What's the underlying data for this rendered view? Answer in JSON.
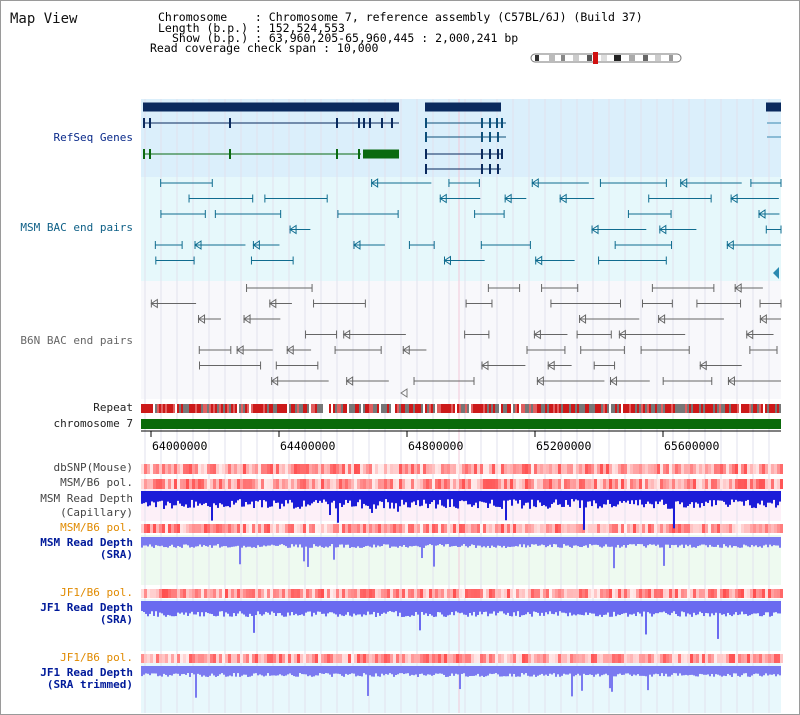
{
  "header": {
    "title": "Map View",
    "chromosome_line": "Chromosome    : Chromosome 7, reference assembly (C57BL/6J) (Build 37)",
    "length_line": "Length (b.p.) : 152,524,553",
    "show_line": "Show (b.p.) : 63,960,205-65,960,445 : 2,000,241 bp",
    "coverage_line": "Read coverage check span : 10,000"
  },
  "tracks": {
    "refseq": "RefSeq Genes",
    "msm_bac": "MSM BAC end pairs",
    "b6n_bac": "B6N BAC end pairs",
    "repeat": "Repeat",
    "chromosome": "chromosome 7",
    "dbsnp": "dbSNP(Mouse)",
    "msm_b6_pol_1": "MSM/B6 pol.",
    "msm_depth_cap_1": "MSM Read Depth",
    "msm_depth_cap_2": "(Capillary)",
    "msm_b6_pol_2": "MSM/B6 pol.",
    "msm_depth_sra_1": "MSM Read Depth",
    "msm_depth_sra_2": "(SRA)",
    "jf1_b6_pol_1": "JF1/B6 pol.",
    "jf1_depth_sra_1": "JF1 Read Depth",
    "jf1_depth_sra_2": "(SRA)",
    "jf1_b6_pol_2": "JF1/B6 pol.",
    "jf1_depth_trim_1": "JF1 Read Depth",
    "jf1_depth_trim_2": "(SRA trimmed)"
  },
  "axis": {
    "ticks": [
      "64000000",
      "64400000",
      "64800000",
      "65200000",
      "65600000"
    ]
  },
  "colors": {
    "refseq_bg": "#dbeffb",
    "bac_bg": "#e6f8fb",
    "gene_dark": "#0a2a5e",
    "gene_green": "#0a6a10",
    "msm_bac": "#0f6c8f",
    "b6n_bac": "#666666",
    "chromosome_bar": "#0a6a0a",
    "depth_blue": "#1c1cd8",
    "depth_light": "#7a7af0"
  }
}
